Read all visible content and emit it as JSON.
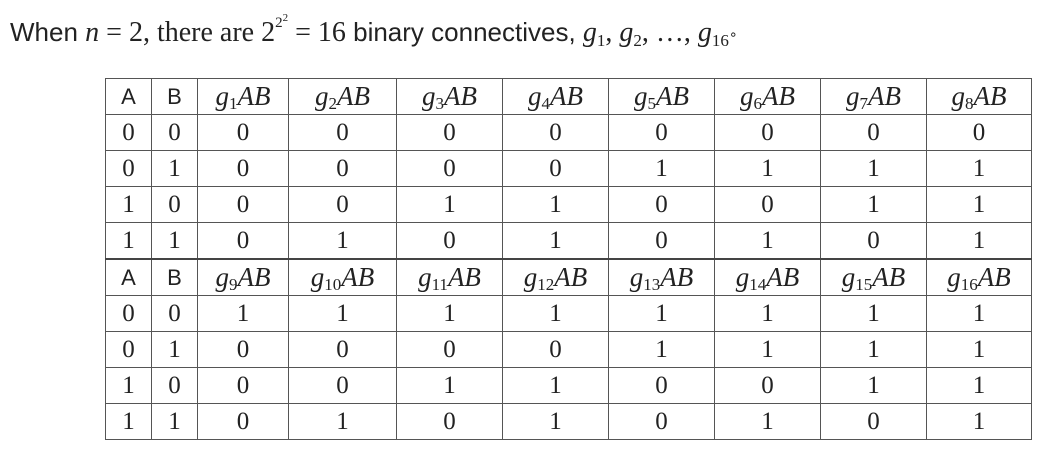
{
  "intro": {
    "prefix": "When ",
    "n_var": "n",
    "equals_1": " = 2, there are ",
    "power_base": "2",
    "power_exp_base": "2",
    "power_exp_exp": "2",
    "equals_2": " = 16",
    "suffix": " binary connectives, ",
    "g_letter": "g",
    "sub_1": "1",
    "sub_2": "2",
    "sub_16": "16",
    "comma": ", ",
    "ellipsis": "…, ",
    "end_mark": "∘"
  },
  "table": {
    "col_a": "A",
    "col_b": "B",
    "g_letter": "g",
    "suffix": "AB",
    "blocks": [
      {
        "indices": [
          "1",
          "2",
          "3",
          "4",
          "5",
          "6",
          "7",
          "8"
        ],
        "rows": [
          [
            "0",
            "0",
            "0",
            "0",
            "0",
            "0",
            "0",
            "0",
            "0",
            "0"
          ],
          [
            "0",
            "1",
            "0",
            "0",
            "0",
            "0",
            "1",
            "1",
            "1",
            "1"
          ],
          [
            "1",
            "0",
            "0",
            "0",
            "1",
            "1",
            "0",
            "0",
            "1",
            "1"
          ],
          [
            "1",
            "1",
            "0",
            "1",
            "0",
            "1",
            "0",
            "1",
            "0",
            "1"
          ]
        ]
      },
      {
        "indices": [
          "9",
          "10",
          "11",
          "12",
          "13",
          "14",
          "15",
          "16"
        ],
        "rows": [
          [
            "0",
            "0",
            "1",
            "1",
            "1",
            "1",
            "1",
            "1",
            "1",
            "1"
          ],
          [
            "0",
            "1",
            "0",
            "0",
            "0",
            "0",
            "1",
            "1",
            "1",
            "1"
          ],
          [
            "1",
            "0",
            "0",
            "0",
            "1",
            "1",
            "0",
            "0",
            "1",
            "1"
          ],
          [
            "1",
            "1",
            "0",
            "1",
            "0",
            "1",
            "0",
            "1",
            "0",
            "1"
          ]
        ]
      }
    ]
  }
}
